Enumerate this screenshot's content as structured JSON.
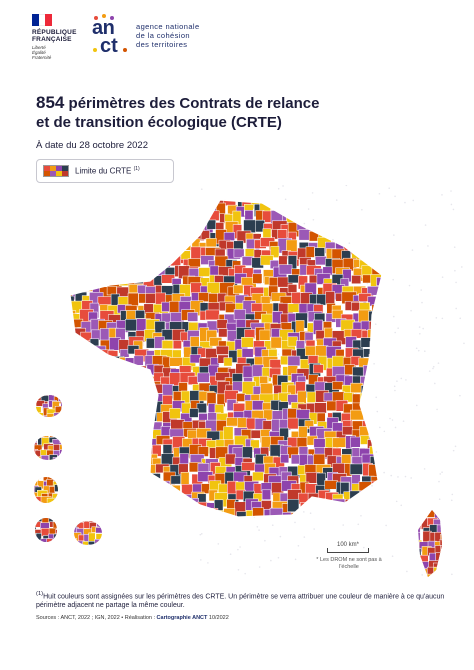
{
  "header": {
    "republic_line1": "RÉPUBLIQUE",
    "republic_line2": "FRANÇAISE",
    "motto_1": "Liberté",
    "motto_2": "Égalité",
    "motto_3": "Fraternité",
    "anct_word_top": "an",
    "anct_word_bottom": "ct",
    "anct_line1": "agence nationale",
    "anct_line2": "de la cohésion",
    "anct_line3": "des territoires"
  },
  "title": {
    "count": "854",
    "line1_rest": " périmètres des Contrats de relance",
    "line2": "et de transition écologique (CRTE)"
  },
  "date": "À date du 28 octobre 2022",
  "legend": {
    "label": "Limite du CRTE",
    "note_ref": "(1)"
  },
  "palette": [
    "#e74c3c",
    "#f39c12",
    "#8e44ad",
    "#2c3e50",
    "#d35400",
    "#9b59b6",
    "#f1c40f",
    "#c0392b"
  ],
  "scale": {
    "label": "100 km*",
    "drom_note": "* Les DROM ne sont pas à l'échelle"
  },
  "footnote": {
    "ref": "(1)",
    "text": "Huit couleurs sont assignées sur les périmètres des CRTE. Un périmètre se verra attribuer une couleur de manière à ce qu'aucun périmètre adjacent ne partage la même couleur."
  },
  "sources": {
    "prefix": "Sources : ANCT, 2022 ; IGN, 2022 • Réalisation : ",
    "highlight": "Cartographie ANCT",
    "suffix": " 10/2022"
  }
}
